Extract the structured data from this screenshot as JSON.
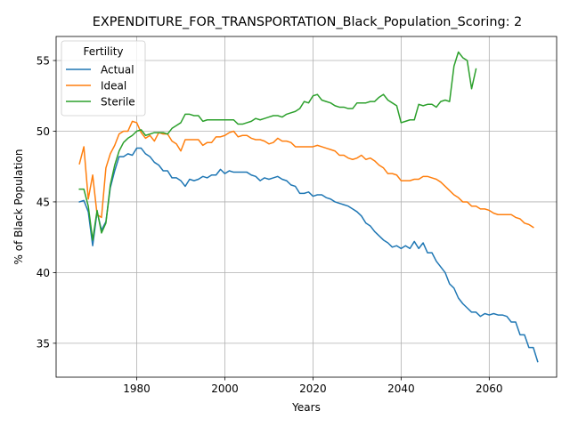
{
  "chart_data": {
    "type": "line",
    "title": "EXPENDITURE_FOR_TRANSPORTATION_Black_Population_Scoring: 2",
    "xlabel": "Years",
    "ylabel": "% of Black Population",
    "xlim": [
      1961.7,
      2075.3
    ],
    "ylim": [
      32.6,
      56.7
    ],
    "xticks": [
      1980,
      2000,
      2020,
      2040,
      2060
    ],
    "yticks": [
      35,
      40,
      45,
      50,
      55
    ],
    "grid": true,
    "legend": {
      "title": "Fertility",
      "placement": "top-left"
    },
    "colors": {
      "Actual": "#1f77b4",
      "Ideal": "#ff7f0e",
      "Sterile": "#2ca02c"
    },
    "series": [
      {
        "name": "Actual",
        "points": [
          [
            1967,
            45.0
          ],
          [
            1968,
            45.1
          ],
          [
            1969,
            44.3
          ],
          [
            1970,
            41.9
          ],
          [
            1971,
            44.3
          ],
          [
            1972,
            43.0
          ],
          [
            1973,
            43.6
          ],
          [
            1974,
            46.0
          ],
          [
            1975,
            47.2
          ],
          [
            1976,
            48.2
          ],
          [
            1977,
            48.2
          ],
          [
            1978,
            48.4
          ],
          [
            1979,
            48.3
          ],
          [
            1980,
            48.8
          ],
          [
            1981,
            48.8
          ],
          [
            1982,
            48.4
          ],
          [
            1983,
            48.2
          ],
          [
            1984,
            47.8
          ],
          [
            1985,
            47.6
          ],
          [
            1986,
            47.2
          ],
          [
            1987,
            47.2
          ],
          [
            1988,
            46.7
          ],
          [
            1989,
            46.7
          ],
          [
            1990,
            46.5
          ],
          [
            1991,
            46.1
          ],
          [
            1992,
            46.6
          ],
          [
            1993,
            46.5
          ],
          [
            1994,
            46.6
          ],
          [
            1995,
            46.8
          ],
          [
            1996,
            46.7
          ],
          [
            1997,
            46.9
          ],
          [
            1998,
            46.9
          ],
          [
            1999,
            47.3
          ],
          [
            2000,
            47.0
          ],
          [
            2001,
            47.2
          ],
          [
            2002,
            47.1
          ],
          [
            2003,
            47.1
          ],
          [
            2004,
            47.1
          ],
          [
            2005,
            47.1
          ],
          [
            2006,
            46.9
          ],
          [
            2007,
            46.8
          ],
          [
            2008,
            46.5
          ],
          [
            2009,
            46.7
          ],
          [
            2010,
            46.6
          ],
          [
            2011,
            46.7
          ],
          [
            2012,
            46.8
          ],
          [
            2013,
            46.6
          ],
          [
            2014,
            46.5
          ],
          [
            2015,
            46.2
          ],
          [
            2016,
            46.1
          ],
          [
            2017,
            45.6
          ],
          [
            2018,
            45.6
          ],
          [
            2019,
            45.7
          ],
          [
            2020,
            45.4
          ],
          [
            2021,
            45.5
          ],
          [
            2022,
            45.5
          ],
          [
            2023,
            45.3
          ],
          [
            2024,
            45.2
          ],
          [
            2025,
            45.0
          ],
          [
            2026,
            44.9
          ],
          [
            2027,
            44.8
          ],
          [
            2028,
            44.7
          ],
          [
            2029,
            44.5
          ],
          [
            2030,
            44.3
          ],
          [
            2031,
            44.0
          ],
          [
            2032,
            43.5
          ],
          [
            2033,
            43.3
          ],
          [
            2034,
            42.9
          ],
          [
            2035,
            42.6
          ],
          [
            2036,
            42.3
          ],
          [
            2037,
            42.1
          ],
          [
            2038,
            41.8
          ],
          [
            2039,
            41.9
          ],
          [
            2040,
            41.7
          ],
          [
            2041,
            41.9
          ],
          [
            2042,
            41.7
          ],
          [
            2043,
            42.2
          ],
          [
            2044,
            41.7
          ],
          [
            2045,
            42.1
          ],
          [
            2046,
            41.4
          ],
          [
            2047,
            41.4
          ],
          [
            2048,
            40.8
          ],
          [
            2049,
            40.4
          ],
          [
            2050,
            40.0
          ],
          [
            2051,
            39.2
          ],
          [
            2052,
            38.9
          ],
          [
            2053,
            38.2
          ],
          [
            2054,
            37.8
          ],
          [
            2055,
            37.5
          ],
          [
            2056,
            37.2
          ],
          [
            2057,
            37.2
          ],
          [
            2058,
            36.9
          ],
          [
            2059,
            37.1
          ],
          [
            2060,
            37.0
          ],
          [
            2061,
            37.1
          ],
          [
            2062,
            37.0
          ],
          [
            2063,
            37.0
          ],
          [
            2064,
            36.9
          ],
          [
            2065,
            36.5
          ],
          [
            2066,
            36.5
          ],
          [
            2067,
            35.6
          ],
          [
            2068,
            35.6
          ],
          [
            2069,
            34.7
          ],
          [
            2070,
            34.7
          ],
          [
            2071,
            33.7
          ]
        ]
      },
      {
        "name": "Ideal",
        "points": [
          [
            1967,
            47.7
          ],
          [
            1968,
            48.9
          ],
          [
            1969,
            45.2
          ],
          [
            1970,
            46.9
          ],
          [
            1971,
            44.1
          ],
          [
            1972,
            43.9
          ],
          [
            1973,
            47.4
          ],
          [
            1974,
            48.4
          ],
          [
            1975,
            49.0
          ],
          [
            1976,
            49.8
          ],
          [
            1977,
            50.0
          ],
          [
            1978,
            50.0
          ],
          [
            1979,
            50.7
          ],
          [
            1980,
            50.6
          ],
          [
            1981,
            49.9
          ],
          [
            1982,
            49.5
          ],
          [
            1983,
            49.7
          ],
          [
            1984,
            49.3
          ],
          [
            1985,
            49.9
          ],
          [
            1986,
            49.8
          ],
          [
            1987,
            49.8
          ],
          [
            1988,
            49.3
          ],
          [
            1989,
            49.1
          ],
          [
            1990,
            48.6
          ],
          [
            1991,
            49.4
          ],
          [
            1992,
            49.4
          ],
          [
            1993,
            49.4
          ],
          [
            1994,
            49.4
          ],
          [
            1995,
            49.0
          ],
          [
            1996,
            49.2
          ],
          [
            1997,
            49.2
          ],
          [
            1998,
            49.6
          ],
          [
            1999,
            49.6
          ],
          [
            2000,
            49.7
          ],
          [
            2001,
            49.9
          ],
          [
            2002,
            50.0
          ],
          [
            2003,
            49.6
          ],
          [
            2004,
            49.7
          ],
          [
            2005,
            49.7
          ],
          [
            2006,
            49.5
          ],
          [
            2007,
            49.4
          ],
          [
            2008,
            49.4
          ],
          [
            2009,
            49.3
          ],
          [
            2010,
            49.1
          ],
          [
            2011,
            49.2
          ],
          [
            2012,
            49.5
          ],
          [
            2013,
            49.3
          ],
          [
            2014,
            49.3
          ],
          [
            2015,
            49.2
          ],
          [
            2016,
            48.9
          ],
          [
            2017,
            48.9
          ],
          [
            2018,
            48.9
          ],
          [
            2019,
            48.9
          ],
          [
            2020,
            48.9
          ],
          [
            2021,
            49.0
          ],
          [
            2022,
            48.9
          ],
          [
            2023,
            48.8
          ],
          [
            2024,
            48.7
          ],
          [
            2025,
            48.6
          ],
          [
            2026,
            48.3
          ],
          [
            2027,
            48.3
          ],
          [
            2028,
            48.1
          ],
          [
            2029,
            48.0
          ],
          [
            2030,
            48.1
          ],
          [
            2031,
            48.3
          ],
          [
            2032,
            48.0
          ],
          [
            2033,
            48.1
          ],
          [
            2034,
            47.9
          ],
          [
            2035,
            47.6
          ],
          [
            2036,
            47.4
          ],
          [
            2037,
            47.0
          ],
          [
            2038,
            47.0
          ],
          [
            2039,
            46.9
          ],
          [
            2040,
            46.5
          ],
          [
            2041,
            46.5
          ],
          [
            2042,
            46.5
          ],
          [
            2043,
            46.6
          ],
          [
            2044,
            46.6
          ],
          [
            2045,
            46.8
          ],
          [
            2046,
            46.8
          ],
          [
            2047,
            46.7
          ],
          [
            2048,
            46.6
          ],
          [
            2049,
            46.4
          ],
          [
            2050,
            46.1
          ],
          [
            2051,
            45.8
          ],
          [
            2052,
            45.5
          ],
          [
            2053,
            45.3
          ],
          [
            2054,
            45.0
          ],
          [
            2055,
            45.0
          ],
          [
            2056,
            44.7
          ],
          [
            2057,
            44.7
          ],
          [
            2058,
            44.5
          ],
          [
            2059,
            44.5
          ],
          [
            2060,
            44.4
          ],
          [
            2061,
            44.2
          ],
          [
            2062,
            44.1
          ],
          [
            2063,
            44.1
          ],
          [
            2064,
            44.1
          ],
          [
            2065,
            44.1
          ],
          [
            2066,
            43.9
          ],
          [
            2067,
            43.8
          ],
          [
            2068,
            43.5
          ],
          [
            2069,
            43.4
          ],
          [
            2070,
            43.2
          ]
        ]
      },
      {
        "name": "Sterile",
        "points": [
          [
            1967,
            45.9
          ],
          [
            1968,
            45.9
          ],
          [
            1969,
            44.7
          ],
          [
            1970,
            42.3
          ],
          [
            1971,
            44.4
          ],
          [
            1972,
            42.8
          ],
          [
            1973,
            43.5
          ],
          [
            1974,
            46.2
          ],
          [
            1975,
            47.6
          ],
          [
            1976,
            48.6
          ],
          [
            1977,
            49.2
          ],
          [
            1978,
            49.5
          ],
          [
            1979,
            49.7
          ],
          [
            1980,
            50.0
          ],
          [
            1981,
            50.1
          ],
          [
            1982,
            49.7
          ],
          [
            1983,
            49.8
          ],
          [
            1984,
            49.9
          ],
          [
            1985,
            49.9
          ],
          [
            1986,
            49.9
          ],
          [
            1987,
            49.8
          ],
          [
            1988,
            50.2
          ],
          [
            1989,
            50.4
          ],
          [
            1990,
            50.6
          ],
          [
            1991,
            51.2
          ],
          [
            1992,
            51.2
          ],
          [
            1993,
            51.1
          ],
          [
            1994,
            51.1
          ],
          [
            1995,
            50.7
          ],
          [
            1996,
            50.8
          ],
          [
            1997,
            50.8
          ],
          [
            1998,
            50.8
          ],
          [
            1999,
            50.8
          ],
          [
            2000,
            50.8
          ],
          [
            2001,
            50.8
          ],
          [
            2002,
            50.8
          ],
          [
            2003,
            50.5
          ],
          [
            2004,
            50.5
          ],
          [
            2005,
            50.6
          ],
          [
            2006,
            50.7
          ],
          [
            2007,
            50.9
          ],
          [
            2008,
            50.8
          ],
          [
            2009,
            50.9
          ],
          [
            2010,
            51.0
          ],
          [
            2011,
            51.1
          ],
          [
            2012,
            51.1
          ],
          [
            2013,
            51.0
          ],
          [
            2014,
            51.2
          ],
          [
            2015,
            51.3
          ],
          [
            2016,
            51.4
          ],
          [
            2017,
            51.6
          ],
          [
            2018,
            52.1
          ],
          [
            2019,
            52.0
          ],
          [
            2020,
            52.5
          ],
          [
            2021,
            52.6
          ],
          [
            2022,
            52.2
          ],
          [
            2023,
            52.1
          ],
          [
            2024,
            52.0
          ],
          [
            2025,
            51.8
          ],
          [
            2026,
            51.7
          ],
          [
            2027,
            51.7
          ],
          [
            2028,
            51.6
          ],
          [
            2029,
            51.6
          ],
          [
            2030,
            52.0
          ],
          [
            2031,
            52.0
          ],
          [
            2032,
            52.0
          ],
          [
            2033,
            52.1
          ],
          [
            2034,
            52.1
          ],
          [
            2035,
            52.4
          ],
          [
            2036,
            52.6
          ],
          [
            2037,
            52.2
          ],
          [
            2038,
            52.0
          ],
          [
            2039,
            51.8
          ],
          [
            2040,
            50.6
          ],
          [
            2041,
            50.7
          ],
          [
            2042,
            50.8
          ],
          [
            2043,
            50.8
          ],
          [
            2044,
            51.9
          ],
          [
            2045,
            51.8
          ],
          [
            2046,
            51.9
          ],
          [
            2047,
            51.9
          ],
          [
            2048,
            51.7
          ],
          [
            2049,
            52.1
          ],
          [
            2050,
            52.2
          ],
          [
            2051,
            52.1
          ],
          [
            2052,
            54.6
          ],
          [
            2053,
            55.6
          ],
          [
            2054,
            55.2
          ],
          [
            2055,
            55.0
          ],
          [
            2056,
            53.0
          ],
          [
            2057,
            54.4
          ]
        ]
      }
    ]
  }
}
